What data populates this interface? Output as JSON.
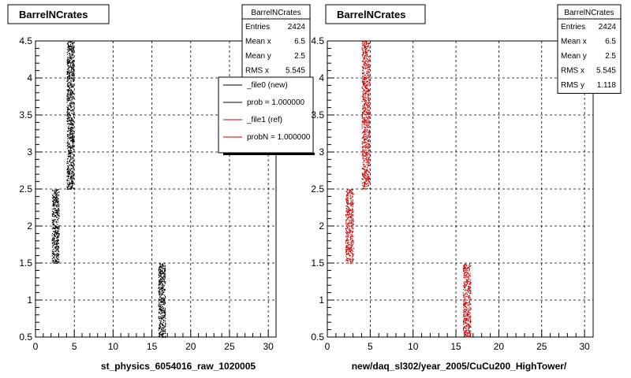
{
  "colors": {
    "new": "#000000",
    "ref": "#cc0000",
    "grid": "#000000"
  },
  "panels": [
    {
      "title": "BarrelNCrates",
      "xlabel": "st_physics_6054016_raw_1020005",
      "stats": {
        "title": "BarrelNCrates",
        "rows": [
          {
            "label": "Entries",
            "value": "2424"
          },
          {
            "label": "Mean x",
            "value": "6.5"
          },
          {
            "label": "Mean y",
            "value": "2.5"
          },
          {
            "label": "RMS x",
            "value": "5.545"
          }
        ]
      },
      "legend": [
        {
          "label": "_file0 (new)",
          "color": "#000000"
        },
        {
          "label": "prob = 1.000000",
          "color": "#000000"
        },
        {
          "label": "_file1 (ref)",
          "color": "#cc0000"
        },
        {
          "label": "probN = 1.000000",
          "color": "#cc0000"
        }
      ]
    },
    {
      "title": "BarrelNCrates",
      "xlabel": "new/daq_sl302/year_2005/CuCu200_HighTower/",
      "stats": {
        "title": "BarrelNCrates",
        "rows": [
          {
            "label": "Entries",
            "value": "2424"
          },
          {
            "label": "Mean x",
            "value": "6.5"
          },
          {
            "label": "Mean y",
            "value": "2.5"
          },
          {
            "label": "RMS x",
            "value": "5.545"
          },
          {
            "label": "RMS y",
            "value": "1.118"
          }
        ]
      }
    }
  ],
  "chart_data": [
    {
      "type": "scatter",
      "title": "BarrelNCrates",
      "xlabel": "st_physics_6054016_raw_1020005",
      "ylabel": "",
      "xlim": [
        0,
        31
      ],
      "ylim": [
        0.5,
        4.5
      ],
      "xticks": [
        0,
        5,
        10,
        15,
        20,
        25,
        30
      ],
      "yticks": [
        0.5,
        1,
        1.5,
        2,
        2.5,
        3,
        3.5,
        4,
        4.5
      ],
      "grid": true,
      "series": [
        {
          "name": "_file0 (new)",
          "color": "#000000",
          "clusters": [
            {
              "x": [
                2.1,
                3.0
              ],
              "y": [
                1.5,
                2.5
              ]
            },
            {
              "x": [
                4.0,
                4.9
              ],
              "y": [
                2.5,
                4.5
              ]
            },
            {
              "x": [
                15.8,
                16.7
              ],
              "y": [
                0.5,
                1.5
              ]
            }
          ]
        }
      ]
    },
    {
      "type": "scatter",
      "title": "BarrelNCrates",
      "xlabel": "new/daq_sl302/year_2005/CuCu200_HighTower/",
      "ylabel": "",
      "xlim": [
        0,
        31
      ],
      "ylim": [
        0.5,
        4.5
      ],
      "xticks": [
        0,
        5,
        10,
        15,
        20,
        25,
        30
      ],
      "yticks": [
        0.5,
        1,
        1.5,
        2,
        2.5,
        3,
        3.5,
        4,
        4.5
      ],
      "grid": true,
      "series": [
        {
          "name": "_file1 (ref)",
          "color": "#cc0000",
          "clusters": [
            {
              "x": [
                2.1,
                3.0
              ],
              "y": [
                1.5,
                2.5
              ]
            },
            {
              "x": [
                4.0,
                4.9
              ],
              "y": [
                2.5,
                4.5
              ]
            },
            {
              "x": [
                15.8,
                16.7
              ],
              "y": [
                0.5,
                1.5
              ]
            }
          ]
        }
      ]
    }
  ]
}
